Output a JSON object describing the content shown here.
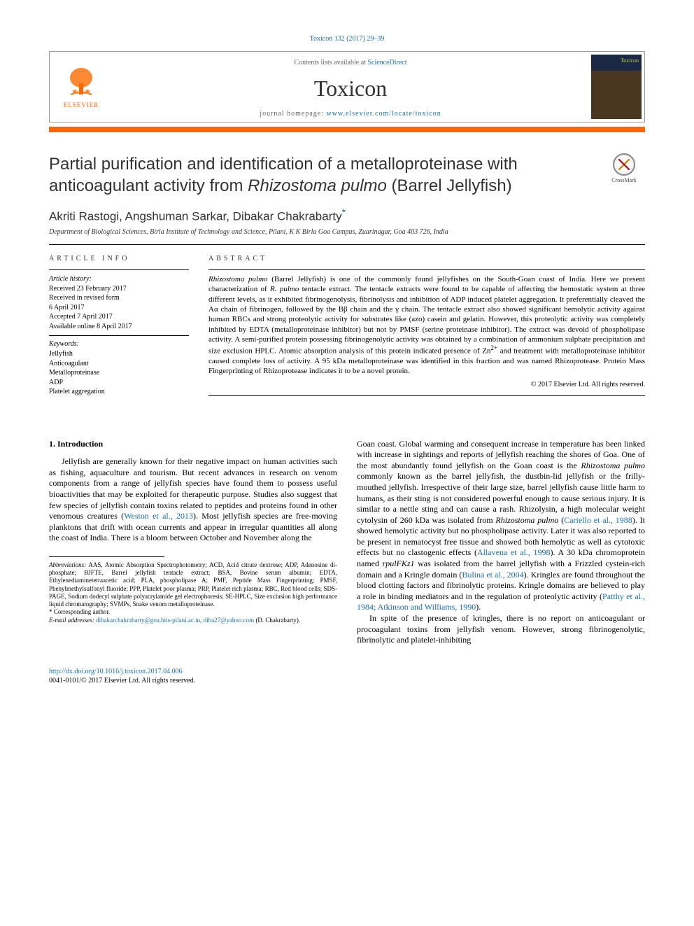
{
  "citation": "Toxicon 132 (2017) 29–39",
  "header": {
    "contents_prefix": "Contents lists available at ",
    "contents_link": "ScienceDirect",
    "journal": "Toxicon",
    "homepage_prefix": "journal homepage: ",
    "homepage_url": "www.elsevier.com/locate/toxicon",
    "publisher_name": "ELSEVIER",
    "cover_label": "Toxicon"
  },
  "title_parts": {
    "pre": "Partial purification and identification of a metalloproteinase with anticoagulant activity from ",
    "em": "Rhizostoma pulmo",
    "post": " (Barrel Jellyfish)"
  },
  "crossmark_label": "CrossMark",
  "authors": "Akriti Rastogi, Angshuman Sarkar, Dibakar Chakrabarty",
  "affiliation": "Department of Biological Sciences, Birla Institute of Technology and Science, Pilani, K K Birla Goa Campus, Zuarinagar, Goa 403 726, India",
  "article_info": {
    "label": "ARTICLE INFO",
    "history_label": "Article history:",
    "history": [
      "Received 23 February 2017",
      "Received in revised form",
      "6 April 2017",
      "Accepted 7 April 2017",
      "Available online 8 April 2017"
    ],
    "keywords_label": "Keywords:",
    "keywords": [
      "Jellyfish",
      "Anticoagulant",
      "Metalloproteinase",
      "ADP",
      "Platelet aggregation"
    ]
  },
  "abstract": {
    "label": "ABSTRACT",
    "text_html": "<em>Rhizostoma pulmo</em> (Barrel Jellyfish) is one of the commonly found jellyfishes on the South-Goan coast of India. Here we present characterization of <em>R. pulmo</em> tentacle extract. The tentacle extracts were found to be capable of affecting the hemostatic system at three different levels, as it exhibited fibrinogenolysis, fibrinolysis and inhibition of ADP induced platelet aggregation. It preferentially cleaved the Aα chain of fibrinogen, followed by the Bβ chain and the γ chain. The tentacle extract also showed significant hemolytic activity against human RBCs and strong proteolytic activity for substrates like (azo) casein and gelatin. However, this proteolytic activity was completely inhibited by EDTA (metalloproteinase inhibitor) but not by PMSF (serine proteinase inhibitor). The extract was devoid of phospholipase activity. A semi-purified protein possessing fibrinogenolytic activity was obtained by a combination of ammonium sulphate precipitation and size exclusion HPLC. Atomic absorption analysis of this protein indicated presence of Zn<sup>2+</sup> and treatment with metalloproteinase inhibitor caused complete loss of activity. A 95 kDa metalloproteinase was identified in this fraction and was named Rhizoprotease. Protein Mass Fingerprinting of Rhizoprotease indicates it to be a novel protein.",
    "copyright": "© 2017 Elsevier Ltd. All rights reserved."
  },
  "body": {
    "section_heading": "1. Introduction",
    "col1_html": "Jellyfish are generally known for their negative impact on human activities such as fishing, aquaculture and tourism. But recent advances in research on venom components from a range of jellyfish species have found them to possess useful bioactivities that may be exploited for therapeutic purpose. Studies also suggest that few species of jellyfish contain toxins related to peptides and proteins found in other venomous creatures (<span class=\"ref-link\">Weston et al., 2013</span>). Most jellyfish species are free-moving planktons that drift with ocean currents and appear in irregular quantities all along the coast of India. There is a bloom between October and November along the",
    "col2_p1_html": "Goan coast. Global warming and consequent increase in temperature has been linked with increase in sightings and reports of jellyfish reaching the shores of Goa. One of the most abundantly found jellyfish on the Goan coast is the <em>Rhizostoma pulmo</em> commonly known as the barrel jellyfish, the dustbin-lid jellyfish or the frilly-mouthed jellyfish. Irrespective of their large size, barrel jellyfish cause little harm to humans, as their sting is not considered powerful enough to cause serious injury. It is similar to a nettle sting and can cause a rash. Rhizolysin, a high molecular weight cytolysin of 260 kDa was isolated from <em>Rhizostoma pulmo</em> (<span class=\"ref-link\">Cariello et al., 1988</span>). It showed hemolytic activity but no phospholipase activity. Later it was also reported to be present in nematocyst free tissue and showed both hemolytic as well as cytotoxic effects but no clastogenic effects (<span class=\"ref-link\">Allavena et al., 1998</span>). A 30 kDa chromoprotein named <em>rpulFKz1</em> was isolated from the barrel jellyfish with a Frizzled cystein-rich domain and a Kringle domain (<span class=\"ref-link\">Bulina et al., 2004</span>). Kringles are found throughout the blood clotting factors and fibrinolytic proteins. Kringle domains are believed to play a role in binding mediators and in the regulation of proteolytic activity (<span class=\"ref-link\">Patthy et al., 1984; Atkinson and Williams, 1990</span>).",
    "col2_p2_html": "In spite of the presence of kringles, there is no report on anticoagulant or procoagulant toxins from jellyfish venom. However, strong fibrinogenolytic, fibrinolytic and platelet-inhibiting"
  },
  "footnotes": {
    "abbrev_label": "Abbreviations:",
    "abbrev_text": " AAS, Atomic Absorption Spectrophotometry; ACD, Acid citrate dextrose; ADP, Adenosine di-phosphate; BJFTE, Barrel jellyfish tentacle extract; BSA, Bovine serum albumin; EDTA, Ethylenediaminetetraacetic acid; PLA, phospholipase A; PMF, Peptide Mass Fingerprinting; PMSF, Phenylmethylsulfonyl fluoride; PPP, Platelet poor plasma; PRP, Platelet rich plasma; RBC, Red blood cells; SDS-PAGE, Sodium dodecyl sulphate polyacrylamide gel electrophoresis; SE-HPLC, Size exclusion high performance liquid chromatography; SVMPs, Snake venom metalloproteinase.",
    "corr_label": "* Corresponding author.",
    "email_label": "E-mail addresses:",
    "email1": "dibakarchakrabarty@goa.bits-pilani.ac.in",
    "email_sep": ", ",
    "email2": "diba27@yahoo.com",
    "corr_name": "(D. Chakrabarty)."
  },
  "footer": {
    "doi": "http://dx.doi.org/10.1016/j.toxicon.2017.04.006",
    "issn_line": "0041-0101/© 2017 Elsevier Ltd. All rights reserved."
  },
  "colors": {
    "accent_orange": "#ff6600",
    "link_blue": "#1a6ea8",
    "text": "#000000",
    "bg": "#ffffff"
  }
}
